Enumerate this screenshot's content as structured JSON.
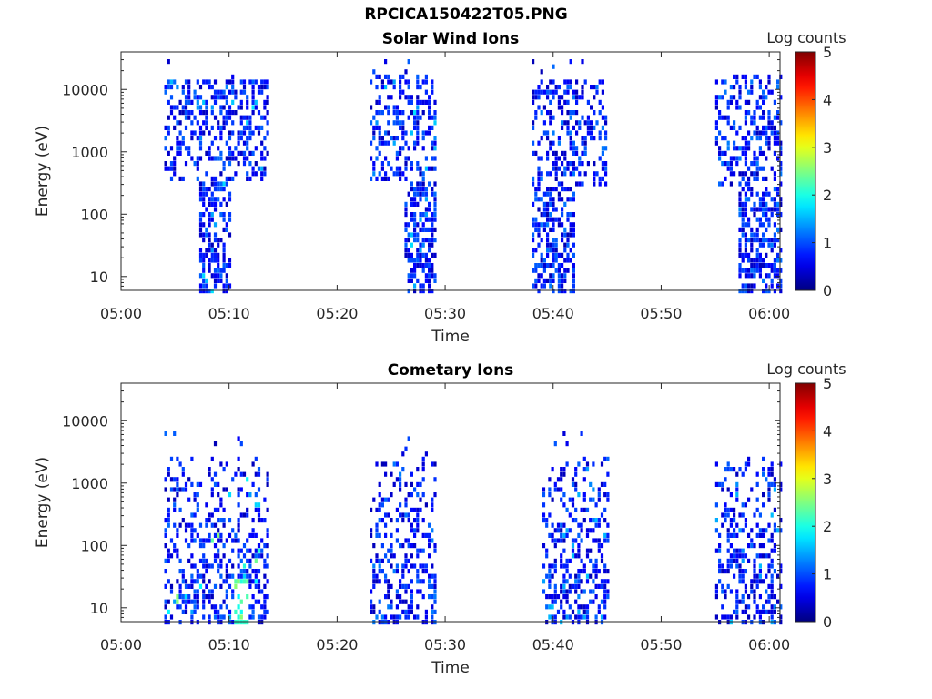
{
  "figure_title": "RPCICA150422T05.PNG",
  "chart_data": [
    {
      "type": "heatmap",
      "title": "Solar Wind Ions",
      "xlabel": "Time",
      "ylabel": "Energy (eV)",
      "x_range": [
        "05:00",
        "06:01"
      ],
      "y_range_eV": [
        6,
        40000
      ],
      "y_scale": "log",
      "x_ticks": [
        "05:00",
        "05:10",
        "05:20",
        "05:30",
        "05:40",
        "05:50",
        "06:00"
      ],
      "y_ticks": [
        "10",
        "100",
        "1000",
        "10000"
      ],
      "colorbar": {
        "label": "Log counts",
        "range": [
          0,
          5
        ],
        "ticks": [
          "0",
          "1",
          "2",
          "3",
          "4",
          "5"
        ],
        "colormap": "jet"
      },
      "activity_bursts": [
        {
          "start": "05:04",
          "end": "05:13:30",
          "emin_eV": 400,
          "emax_eV": 16000,
          "low_energy_core": {
            "start": "05:07",
            "end": "05:10",
            "emin_eV": 6
          },
          "peak_log_counts": 1.8
        },
        {
          "start": "05:23",
          "end": "05:29",
          "emin_eV": 400,
          "emax_eV": 20000,
          "low_energy_core": {
            "start": "05:26",
            "end": "05:29",
            "emin_eV": 6
          },
          "peak_log_counts": 1.8
        },
        {
          "start": "05:38",
          "end": "05:45",
          "emin_eV": 300,
          "emax_eV": 15000,
          "low_energy_core": {
            "start": "05:38",
            "end": "05:42",
            "emin_eV": 6
          },
          "peak_log_counts": 1.2
        },
        {
          "start": "05:55",
          "end": "06:01",
          "emin_eV": 300,
          "emax_eV": 20000,
          "low_energy_core": {
            "start": "05:57",
            "end": "06:01",
            "emin_eV": 6
          },
          "peak_log_counts": 1.2
        }
      ]
    },
    {
      "type": "heatmap",
      "title": "Cometary Ions",
      "xlabel": "Time",
      "ylabel": "Energy (eV)",
      "x_range": [
        "05:00",
        "06:01"
      ],
      "y_range_eV": [
        6,
        40000
      ],
      "y_scale": "log",
      "x_ticks": [
        "05:00",
        "05:10",
        "05:20",
        "05:30",
        "05:40",
        "05:50",
        "06:00"
      ],
      "y_ticks": [
        "10",
        "100",
        "1000",
        "10000"
      ],
      "colorbar": {
        "label": "Log counts",
        "range": [
          0,
          5
        ],
        "ticks": [
          "0",
          "1",
          "2",
          "3",
          "4",
          "5"
        ],
        "colormap": "jet"
      },
      "activity_bursts": [
        {
          "start": "05:04",
          "end": "05:13:30",
          "emin_eV": 6,
          "emax_eV": 3000,
          "peak_log_counts": 2.6,
          "peak_time": "05:11",
          "peak_energy_eV": 8
        },
        {
          "start": "05:23",
          "end": "05:29",
          "emin_eV": 6,
          "emax_eV": 2500,
          "peak_log_counts": 1.2
        },
        {
          "start": "05:39",
          "end": "05:45",
          "emin_eV": 6,
          "emax_eV": 3000,
          "peak_log_counts": 1.6
        },
        {
          "start": "05:55",
          "end": "06:01",
          "emin_eV": 6,
          "emax_eV": 3000,
          "peak_log_counts": 1.6
        }
      ]
    }
  ]
}
